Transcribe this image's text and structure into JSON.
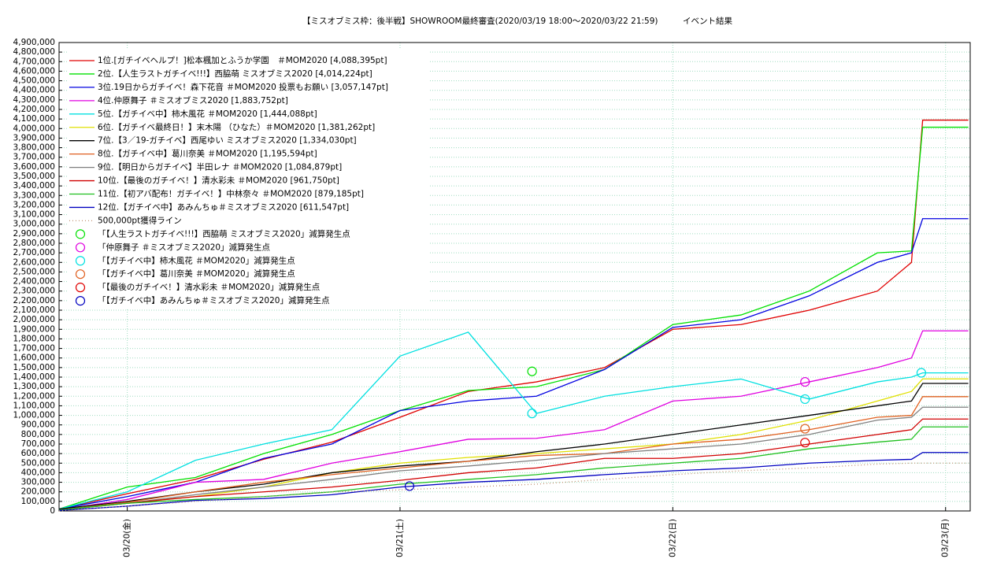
{
  "chart_data": {
    "type": "line",
    "title": "【ミスオブミス枠：後半戦】SHOWROOM最終審査(2020/03/19 18:00〜2020/03/22 21:59)　　　イベント結果",
    "x": [
      "2020-03-19T18:00",
      "2020-03-20T00:00",
      "2020-03-20T06:00",
      "2020-03-20T12:00",
      "2020-03-20T18:00",
      "2020-03-21T00:00",
      "2020-03-21T06:00",
      "2020-03-21T12:00",
      "2020-03-21T18:00",
      "2020-03-22T00:00",
      "2020-03-22T06:00",
      "2020-03-22T12:00",
      "2020-03-22T18:00",
      "2020-03-22T21:00",
      "2020-03-22T21:59",
      "2020-03-23T02:00"
    ],
    "xlim": [
      "2020-03-19T18:00",
      "2020-03-23T02:10"
    ],
    "xticks": [
      {
        "value": "2020-03-20T00:00",
        "label": "03/20(金)"
      },
      {
        "value": "2020-03-21T00:00",
        "label": "03/21(土)"
      },
      {
        "value": "2020-03-22T00:00",
        "label": "03/22(日)"
      },
      {
        "value": "2020-03-23T00:00",
        "label": "03/23(月)"
      }
    ],
    "ylim": [
      0,
      4900000
    ],
    "yticks": [
      {
        "value": 0,
        "label": "0"
      },
      {
        "value": 100000,
        "label": "100,000"
      },
      {
        "value": 200000,
        "label": "200,000"
      },
      {
        "value": 300000,
        "label": "300,000"
      },
      {
        "value": 400000,
        "label": "400,000"
      },
      {
        "value": 500000,
        "label": "500,000"
      },
      {
        "value": 600000,
        "label": "600,000"
      },
      {
        "value": 700000,
        "label": "700,000"
      },
      {
        "value": 800000,
        "label": "800,000"
      },
      {
        "value": 900000,
        "label": "900,000"
      },
      {
        "value": 1000000,
        "label": "1,000,000"
      },
      {
        "value": 1100000,
        "label": "1,100,000"
      },
      {
        "value": 1200000,
        "label": "1,200,000"
      },
      {
        "value": 1300000,
        "label": "1,300,000"
      },
      {
        "value": 1400000,
        "label": "1,400,000"
      },
      {
        "value": 1500000,
        "label": "1,500,000"
      },
      {
        "value": 1600000,
        "label": "1,600,000"
      },
      {
        "value": 1700000,
        "label": "1,700,000"
      },
      {
        "value": 1800000,
        "label": "1,800,000"
      },
      {
        "value": 1900000,
        "label": "1,900,000"
      },
      {
        "value": 2000000,
        "label": "2,000,000"
      },
      {
        "value": 2100000,
        "label": "2,100,000"
      },
      {
        "value": 2200000,
        "label": "2,200,000"
      },
      {
        "value": 2300000,
        "label": "2,300,000"
      },
      {
        "value": 2400000,
        "label": "2,400,000"
      },
      {
        "value": 2500000,
        "label": "2,500,000"
      },
      {
        "value": 2600000,
        "label": "2,600,000"
      },
      {
        "value": 2700000,
        "label": "2,700,000"
      },
      {
        "value": 2800000,
        "label": "2,800,000"
      },
      {
        "value": 2900000,
        "label": "2,900,000"
      },
      {
        "value": 3000000,
        "label": "3,000,000"
      },
      {
        "value": 3100000,
        "label": "3,100,000"
      },
      {
        "value": 3200000,
        "label": "3,200,000"
      },
      {
        "value": 3300000,
        "label": "3,300,000"
      },
      {
        "value": 3400000,
        "label": "3,400,000"
      },
      {
        "value": 3500000,
        "label": "3,500,000"
      },
      {
        "value": 3600000,
        "label": "3,600,000"
      },
      {
        "value": 3700000,
        "label": "3,700,000"
      },
      {
        "value": 3800000,
        "label": "3,800,000"
      },
      {
        "value": 3900000,
        "label": "3,900,000"
      },
      {
        "value": 4000000,
        "label": "4,000,000"
      },
      {
        "value": 4100000,
        "label": "4,100,000"
      },
      {
        "value": 4200000,
        "label": "4,200,000"
      },
      {
        "value": 4300000,
        "label": "4,300,000"
      },
      {
        "value": 4400000,
        "label": "4,400,000"
      },
      {
        "value": 4500000,
        "label": "4,500,000"
      },
      {
        "value": 4600000,
        "label": "4,600,000"
      },
      {
        "value": 4700000,
        "label": "4,700,000"
      },
      {
        "value": 4800000,
        "label": "4,800,000"
      },
      {
        "value": 4900000,
        "label": "4,900,000"
      }
    ],
    "grid": true,
    "legend": "upper left",
    "series": [
      {
        "name": "1位.[ガチイベヘルプ！]松本楓加とふうか学園　＃MOM2020 [4,088,395pt]",
        "color": "#e00000",
        "values": [
          20000,
          180000,
          330000,
          540000,
          720000,
          980000,
          1250000,
          1350000,
          1500000,
          1900000,
          1950000,
          2100000,
          2300000,
          2600000,
          4088395,
          4088395
        ]
      },
      {
        "name": "2位.【人生ラストガチイベ!!!】西脇萌 ミスオブミス2020 [4,014,224pt]",
        "color": "#00e000",
        "values": [
          20000,
          250000,
          350000,
          600000,
          800000,
          1050000,
          1260000,
          1300000,
          1480000,
          1950000,
          2050000,
          2300000,
          2700000,
          2720000,
          4014224,
          4014224
        ]
      },
      {
        "name": "3位.19日からガチイベ！森下花音 ＃MOM2020 投票もお願い [3,057,147pt]",
        "color": "#0000e0",
        "values": [
          20000,
          150000,
          300000,
          550000,
          700000,
          1050000,
          1150000,
          1200000,
          1480000,
          1920000,
          2000000,
          2250000,
          2600000,
          2700000,
          3057147,
          3057147
        ]
      },
      {
        "name": "4位.仲原舞子 ＃ミスオブミス2020 [1,883,752pt]",
        "color": "#e000e0",
        "values": [
          10000,
          120000,
          300000,
          330000,
          500000,
          620000,
          750000,
          760000,
          850000,
          1150000,
          1200000,
          1350000,
          1500000,
          1600000,
          1883752,
          1883752
        ]
      },
      {
        "name": "5位.【ガチイベ中】柿木風花 ＃MOM2020 [1,444,088pt]",
        "color": "#00e0e0",
        "values": [
          20000,
          200000,
          530000,
          700000,
          850000,
          1620000,
          1870000,
          1020000,
          1200000,
          1300000,
          1380000,
          1170000,
          1350000,
          1400000,
          1444088,
          1444088
        ]
      },
      {
        "name": "6位.【ガチイベ最終日！】末木陽 （ひなた）＃MOM2020 [1,381,262pt]",
        "color": "#e0e000",
        "values": [
          10000,
          80000,
          150000,
          250000,
          400000,
          500000,
          560000,
          600000,
          650000,
          700000,
          800000,
          950000,
          1150000,
          1250000,
          1381262,
          1381262
        ]
      },
      {
        "name": "7位.【3／19-ガチイベ】西尾ゆい ミスオブミス2020 [1,334,030pt]",
        "color": "#000000",
        "values": [
          20000,
          100000,
          200000,
          280000,
          400000,
          470000,
          520000,
          620000,
          700000,
          800000,
          900000,
          1000000,
          1100000,
          1150000,
          1334030,
          1334030
        ]
      },
      {
        "name": "8位.【ガチイベ中】葛川奈美 ＃MOM2020 [1,195,594pt]",
        "color": "#e06020",
        "values": [
          10000,
          90000,
          200000,
          300000,
          380000,
          450000,
          520000,
          580000,
          600000,
          700000,
          750000,
          850000,
          980000,
          1000000,
          1195594,
          1195594
        ]
      },
      {
        "name": "9位.【明日からガチイベ】半田レナ ＃MOM2020 [1,084,879pt]",
        "color": "#808080",
        "values": [
          10000,
          80000,
          170000,
          250000,
          330000,
          420000,
          470000,
          530000,
          600000,
          650000,
          700000,
          800000,
          950000,
          980000,
          1084879,
          1084879
        ]
      },
      {
        "name": "10位.【最後のガチイベ！】清水彩未 ＃MOM2020 [961,750pt]",
        "color": "#d00000",
        "values": [
          10000,
          80000,
          150000,
          200000,
          250000,
          320000,
          400000,
          450000,
          550000,
          550000,
          600000,
          700000,
          800000,
          850000,
          961750,
          961750
        ]
      },
      {
        "name": "11位.【初アバ配布！ガチイベ！】中林奈々 ＃MOM2020 [879,185pt]",
        "color": "#20c020",
        "values": [
          10000,
          80000,
          120000,
          150000,
          200000,
          280000,
          330000,
          380000,
          450000,
          500000,
          550000,
          650000,
          720000,
          750000,
          879185,
          879185
        ]
      },
      {
        "name": "12位.【ガチイベ中】あみんちゅ＃ミスオブミス2020 [611,547pt]",
        "color": "#0000c0",
        "values": [
          5000,
          50000,
          110000,
          130000,
          170000,
          250000,
          300000,
          330000,
          380000,
          420000,
          450000,
          500000,
          530000,
          540000,
          611547,
          611547
        ]
      },
      {
        "name": "500,000pt獲得ライン",
        "color": "#c09070",
        "dash": "dotted",
        "values": [
          0,
          50000,
          100000,
          150000,
          200000,
          220000,
          250000,
          280000,
          330000,
          380000,
          420000,
          450000,
          490000,
          500000,
          500000,
          500000
        ]
      }
    ],
    "markers": [
      {
        "name": "「【人生ラストガチイベ!!!】西脇萌 ミスオブミス2020」減算発生点",
        "color": "#00e000",
        "x": [
          "2020-03-21T11:37"
        ],
        "values": [
          1460000
        ]
      },
      {
        "name": "「仲原舞子 ＃ミスオブミス2020」減算発生点",
        "color": "#e000e0",
        "x": [
          "2020-03-22T11:38"
        ],
        "values": [
          1350000
        ]
      },
      {
        "name": "「【ガチイベ中】柿木風花 ＃MOM2020」減算発生点",
        "color": "#00e0e0",
        "x": [
          "2020-03-21T11:37",
          "2020-03-22T11:38",
          "2020-03-22T21:52"
        ],
        "values": [
          1020000,
          1170000,
          1445000
        ]
      },
      {
        "name": "「【ガチイベ中】葛川奈美 ＃MOM2020」減算発生点",
        "color": "#e06020",
        "x": [
          "2020-03-22T11:38"
        ],
        "values": [
          860000
        ]
      },
      {
        "name": "「【最後のガチイベ！】清水彩未 ＃MOM2020」減算発生点",
        "color": "#e00000",
        "x": [
          "2020-03-22T11:38"
        ],
        "values": [
          715000
        ]
      },
      {
        "name": "「【ガチイベ中】あみんちゅ＃ミスオブミス2020」減算発生点",
        "color": "#0000c0",
        "x": [
          "2020-03-21T00:50"
        ],
        "values": [
          260000
        ]
      }
    ]
  }
}
